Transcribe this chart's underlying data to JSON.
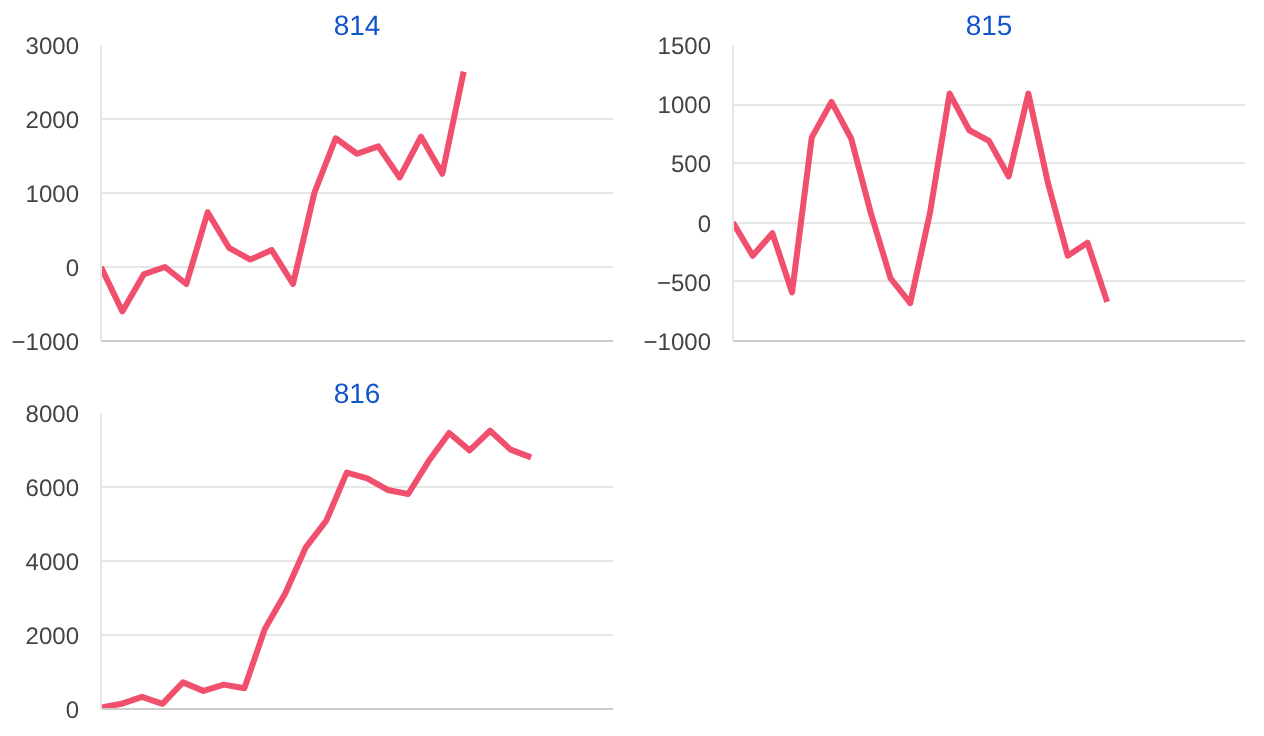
{
  "chart_data": [
    {
      "type": "line",
      "title": "814",
      "categories": [
        null,
        null,
        null,
        null,
        null,
        null,
        null,
        null,
        null,
        null,
        null,
        null,
        null,
        null,
        null,
        null,
        null,
        null,
        null,
        null,
        null,
        null,
        null,
        null,
        null
      ],
      "values": [
        0,
        -600,
        -100,
        0,
        -230,
        740,
        260,
        100,
        230,
        -230,
        1000,
        1740,
        1530,
        1630,
        1210,
        1760,
        1260,
        2640,
        null,
        null,
        null,
        null,
        null,
        null,
        null
      ],
      "color": "#f0506e",
      "ylim": [
        -1000,
        3000
      ],
      "yticks": [
        -1000,
        0,
        1000,
        2000,
        3000
      ],
      "grid": "y",
      "tick_labels": "y"
    },
    {
      "type": "line",
      "title": "815",
      "categories": [
        null,
        null,
        null,
        null,
        null,
        null,
        null,
        null,
        null,
        null,
        null,
        null,
        null,
        null,
        null,
        null,
        null,
        null,
        null,
        null,
        null,
        null,
        null,
        null,
        null,
        null,
        null
      ],
      "values": [
        0,
        -280,
        -90,
        -590,
        720,
        1020,
        710,
        80,
        -470,
        -680,
        80,
        1090,
        780,
        690,
        390,
        1090,
        330,
        -280,
        -170,
        -670,
        null,
        null,
        null,
        null,
        null,
        null,
        null
      ],
      "color": "#f0506e",
      "ylim": [
        -1000,
        1500
      ],
      "yticks": [
        -1000,
        -500,
        0,
        500,
        1000,
        1500
      ],
      "grid": "y",
      "tick_labels": "y"
    },
    {
      "type": "line",
      "title": "816",
      "categories": [
        null,
        null,
        null,
        null,
        null,
        null,
        null,
        null,
        null,
        null,
        null,
        null,
        null,
        null,
        null,
        null,
        null,
        null,
        null,
        null,
        null,
        null,
        null,
        null,
        null,
        null
      ],
      "values": [
        40,
        140,
        330,
        140,
        720,
        490,
        660,
        560,
        2160,
        3130,
        4370,
        5090,
        6390,
        6230,
        5920,
        5810,
        6700,
        7460,
        6990,
        7520,
        7010,
        6800,
        null,
        null,
        null,
        null
      ],
      "color": "#f0506e",
      "ylim": [
        0,
        8000
      ],
      "yticks": [
        0,
        2000,
        4000,
        6000,
        8000
      ],
      "grid": "y",
      "tick_labels": "y"
    }
  ]
}
